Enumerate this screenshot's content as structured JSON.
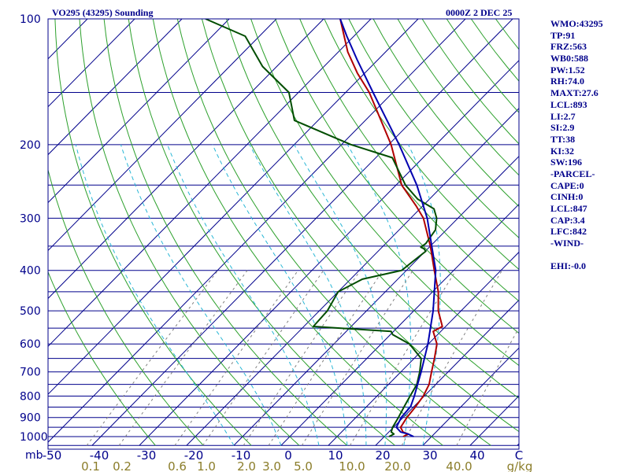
{
  "header": {
    "station": "VO295 (43295) Sounding",
    "time": "0000Z  2 DEC 25"
  },
  "indices": [
    "WMO:43295",
    "TP:91",
    "FRZ:563",
    "WB0:588",
    "PW:1.52",
    "RH:74.0",
    "MAXT:27.6",
    "LCL:893",
    "LI:2.7",
    "SI:2.9",
    "TT:38",
    "KI:32",
    "SW:196",
    "-PARCEL-",
    "CAPE:0",
    "CINH:0",
    "LCL:847",
    "CAP:3.4",
    "LFC:842",
    "-WIND-",
    "",
    "EHI:-0.0"
  ],
  "colors": {
    "frame": "#00008b",
    "isobar": "#00008b",
    "isotherm": "#00008b",
    "dry_adiabat": "#2ca02c",
    "moist_adiabat": "#2ab7d6",
    "mixing_ratio": "#7f7f7f",
    "temperature": "#b00000",
    "dewpoint": "#004d00",
    "parcel": "#0000b0"
  },
  "chart_data": {
    "type": "line",
    "diagram": "skew-T log-p",
    "yaxis": {
      "scale": "log",
      "ticks": [
        100,
        200,
        300,
        400,
        500,
        600,
        700,
        800,
        900,
        1000
      ],
      "unit_label": "mb",
      "ylim": [
        1050,
        100
      ]
    },
    "xaxis": {
      "ticks": [
        -50,
        -40,
        -30,
        -20,
        -10,
        0,
        10,
        20,
        30,
        40
      ],
      "tick_labels": [
        "-50",
        "-40",
        "-30",
        "-20",
        "-10",
        "0",
        "10",
        "20",
        "30",
        "40"
      ],
      "unit_label": "C",
      "xlim": [
        -50,
        50
      ]
    },
    "mixing_ratio_axis": {
      "ticks": [
        0.1,
        0.2,
        0.6,
        1.0,
        2.0,
        3.0,
        5.0,
        10.0,
        20.0,
        40.0
      ],
      "tick_labels": [
        "0.1",
        "0.2",
        "0.6",
        "1.0",
        "2.0",
        "3.0",
        "5.0",
        "10.0",
        "20.0",
        "40.0"
      ],
      "unit_label": "g/kg"
    },
    "grid": true,
    "series": [
      {
        "key": "temperature",
        "points": [
          [
            1000,
            24.0
          ],
          [
            986,
            24.5
          ],
          [
            975,
            23.0
          ],
          [
            950,
            21.5
          ],
          [
            900,
            20.8
          ],
          [
            850,
            20.4
          ],
          [
            800,
            19.8
          ],
          [
            750,
            18.6
          ],
          [
            700,
            16.5
          ],
          [
            650,
            14.3
          ],
          [
            600,
            11.8
          ],
          [
            560,
            8.4
          ],
          [
            545,
            9.3
          ],
          [
            500,
            5.2
          ],
          [
            450,
            1.2
          ],
          [
            400,
            -4.1
          ],
          [
            350,
            -10.0
          ],
          [
            300,
            -17.3
          ],
          [
            280,
            -21.5
          ],
          [
            250,
            -28.8
          ],
          [
            200,
            -39.5
          ],
          [
            150,
            -55.0
          ],
          [
            135,
            -61.5
          ],
          [
            120,
            -68.0
          ],
          [
            100,
            -76.5
          ]
        ]
      },
      {
        "key": "dewpoint",
        "points": [
          [
            1000,
            21.0
          ],
          [
            986,
            21.5
          ],
          [
            975,
            20.5
          ],
          [
            950,
            19.8
          ],
          [
            900,
            19.0
          ],
          [
            850,
            18.0
          ],
          [
            800,
            17.0
          ],
          [
            750,
            16.0
          ],
          [
            700,
            14.0
          ],
          [
            650,
            11.5
          ],
          [
            600,
            6.0
          ],
          [
            570,
            0.5
          ],
          [
            560,
            -0.5
          ],
          [
            545,
            -18.0
          ],
          [
            500,
            -18.3
          ],
          [
            450,
            -20.0
          ],
          [
            420,
            -17.5
          ],
          [
            400,
            -11.0
          ],
          [
            380,
            -10.5
          ],
          [
            360,
            -9.9
          ],
          [
            355,
            -10.8
          ],
          [
            352,
            -11.8
          ],
          [
            345,
            -11.5
          ],
          [
            320,
            -12.3
          ],
          [
            300,
            -14.5
          ],
          [
            285,
            -17.0
          ],
          [
            270,
            -22.5
          ],
          [
            250,
            -28.0
          ],
          [
            215,
            -36.5
          ],
          [
            200,
            -48.0
          ],
          [
            175,
            -65.0
          ],
          [
            150,
            -72.0
          ],
          [
            130,
            -83.0
          ],
          [
            110,
            -93.0
          ],
          [
            100,
            -105.0
          ]
        ]
      },
      {
        "key": "parcel",
        "points": [
          [
            1000,
            26.2
          ],
          [
            986,
            24.5
          ],
          [
            975,
            22.5
          ],
          [
            950,
            20.6
          ],
          [
            900,
            19.6
          ],
          [
            847,
            19.3
          ],
          [
            800,
            17.9
          ],
          [
            700,
            14.3
          ],
          [
            600,
            9.9
          ],
          [
            500,
            4.1
          ],
          [
            400,
            -3.8
          ],
          [
            300,
            -16.5
          ],
          [
            250,
            -25.6
          ],
          [
            200,
            -37.8
          ],
          [
            150,
            -54.2
          ],
          [
            125,
            -64.5
          ],
          [
            110,
            -71.5
          ],
          [
            100,
            -76.5
          ]
        ]
      }
    ]
  }
}
